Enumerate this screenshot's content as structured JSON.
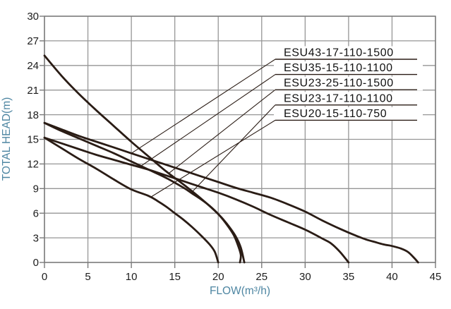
{
  "chart_data": {
    "type": "line",
    "title": "",
    "xlabel": "FLOW(m³/h)",
    "ylabel": "TOTAL HEAD(m)",
    "xlim": [
      0,
      45
    ],
    "ylim": [
      0,
      30
    ],
    "xticks": [
      0,
      5,
      10,
      15,
      20,
      25,
      30,
      35,
      40,
      45
    ],
    "yticks": [
      0,
      3,
      6,
      9,
      12,
      15,
      18,
      21,
      24,
      27,
      30
    ],
    "grid": true,
    "legend_position": "callouts-top-right",
    "colors": {
      "curve": "#2a1c15",
      "grid": "#969696",
      "axis": "#7a7a7a",
      "tick_label": "#1c1c1c",
      "axis_title": "#4e86a2",
      "label_text": "#111111"
    },
    "series": [
      {
        "name": "ESU43-17-110-1500",
        "leader_attach": {
          "flow": 10,
          "head": 13.3
        },
        "points": [
          [
            0,
            17
          ],
          [
            2,
            16.2
          ],
          [
            4,
            15.4
          ],
          [
            6,
            14.7
          ],
          [
            8,
            14.0
          ],
          [
            10,
            13.3
          ],
          [
            12,
            12.6
          ],
          [
            14,
            11.9
          ],
          [
            16,
            11.2
          ],
          [
            18,
            10.5
          ],
          [
            20,
            9.8
          ],
          [
            22,
            9.1
          ],
          [
            24,
            8.5
          ],
          [
            26,
            7.9
          ],
          [
            28,
            7.1
          ],
          [
            30,
            6.2
          ],
          [
            32,
            5.1
          ],
          [
            34,
            4.1
          ],
          [
            36,
            3.2
          ],
          [
            37,
            2.8
          ],
          [
            38,
            2.5
          ],
          [
            39,
            2.2
          ],
          [
            40,
            2.0
          ],
          [
            41,
            1.7
          ],
          [
            41.8,
            1.3
          ],
          [
            42.5,
            0.6
          ],
          [
            43,
            0
          ]
        ]
      },
      {
        "name": "ESU35-15-110-1100",
        "leader_attach": {
          "flow": 10.9,
          "head": 11.6
        },
        "points": [
          [
            0,
            15.2
          ],
          [
            2,
            14.5
          ],
          [
            4,
            13.8
          ],
          [
            6,
            13.1
          ],
          [
            8,
            12.5
          ],
          [
            10,
            11.9
          ],
          [
            12,
            11.3
          ],
          [
            14,
            10.6
          ],
          [
            16,
            9.9
          ],
          [
            18,
            9.2
          ],
          [
            20,
            8.5
          ],
          [
            22,
            7.7
          ],
          [
            24,
            6.8
          ],
          [
            26,
            5.8
          ],
          [
            28,
            4.9
          ],
          [
            30,
            4.0
          ],
          [
            32,
            2.9
          ],
          [
            33,
            2.3
          ],
          [
            34,
            1.3
          ],
          [
            35,
            0
          ]
        ]
      },
      {
        "name": "ESU23-25-110-1500",
        "leader_attach": {
          "flow": 14.3,
          "head": 10.85
        },
        "points": [
          [
            0,
            25.2
          ],
          [
            2,
            22.7
          ],
          [
            4,
            20.5
          ],
          [
            6,
            18.5
          ],
          [
            8,
            16.6
          ],
          [
            10,
            14.7
          ],
          [
            12,
            12.9
          ],
          [
            14,
            11.1
          ],
          [
            16,
            9.5
          ],
          [
            18,
            7.8
          ],
          [
            20,
            5.9
          ],
          [
            21,
            4.7
          ],
          [
            22,
            3.2
          ],
          [
            22.6,
            1.8
          ],
          [
            23,
            0
          ]
        ]
      },
      {
        "name": "ESU23-17-110-1100",
        "leader_attach": {
          "flow": 16.9,
          "head": 8.5
        },
        "points": [
          [
            0,
            17
          ],
          [
            2,
            16.0
          ],
          [
            4,
            15.1
          ],
          [
            6,
            14.2
          ],
          [
            8,
            13.3
          ],
          [
            10,
            12.3
          ],
          [
            12,
            11.3
          ],
          [
            14,
            10.3
          ],
          [
            16,
            9.1
          ],
          [
            17,
            8.4
          ],
          [
            18,
            7.7
          ],
          [
            19,
            6.9
          ],
          [
            20,
            5.9
          ],
          [
            21,
            4.6
          ],
          [
            21.8,
            3.3
          ],
          [
            22.3,
            2.0
          ],
          [
            22.6,
            0.9
          ],
          [
            22.5,
            0
          ]
        ]
      },
      {
        "name": "ESU20-15-110-750",
        "leader_attach": {
          "flow": 12.3,
          "head": 8.0
        },
        "points": [
          [
            0,
            15.2
          ],
          [
            2,
            13.9
          ],
          [
            4,
            12.6
          ],
          [
            6,
            11.4
          ],
          [
            8,
            10.1
          ],
          [
            10,
            8.9
          ],
          [
            12,
            8.1
          ],
          [
            13,
            7.5
          ],
          [
            14,
            6.8
          ],
          [
            15,
            6.0
          ],
          [
            16,
            5.2
          ],
          [
            17,
            4.3
          ],
          [
            18,
            3.3
          ],
          [
            19,
            2.2
          ],
          [
            19.6,
            1.3
          ],
          [
            20,
            0
          ]
        ]
      }
    ]
  }
}
